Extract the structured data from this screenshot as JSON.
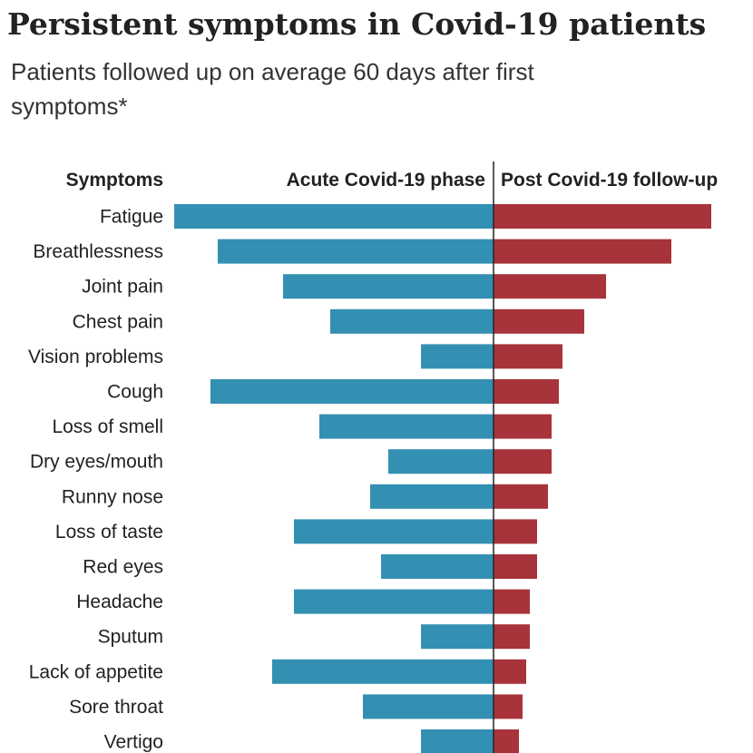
{
  "title": "Persistent symptoms in Covid-19 patients",
  "subtitle": "Patients followed up on average 60 days after first symptoms*",
  "colors": {
    "acute": "#3390b2",
    "post": "#a8333a",
    "axis": "#222222"
  },
  "chart_data": {
    "type": "bar",
    "orientation": "horizontal-diverging",
    "category_header": "Symptoms",
    "categories": [
      "Fatigue",
      "Breathlessness",
      "Joint pain",
      "Chest pain",
      "Vision problems",
      "Cough",
      "Loss of smell",
      "Dry eyes/mouth",
      "Runny nose",
      "Loss of taste",
      "Red eyes",
      "Headache",
      "Sputum",
      "Lack of appetite",
      "Sore throat",
      "Vertigo"
    ],
    "series": [
      {
        "name": "Acute Covid-19 phase",
        "direction": "left",
        "values": [
          88,
          76,
          58,
          45,
          20,
          78,
          48,
          29,
          34,
          55,
          31,
          55,
          20,
          61,
          36,
          20
        ]
      },
      {
        "name": "Post Covid-19 follow-up",
        "direction": "right",
        "values": [
          60,
          49,
          31,
          25,
          19,
          18,
          16,
          16,
          15,
          12,
          12,
          10,
          10,
          9,
          8,
          7
        ]
      }
    ],
    "xlim": [
      0,
      100
    ],
    "units": "relative share of patients (estimated from bar lengths)"
  }
}
